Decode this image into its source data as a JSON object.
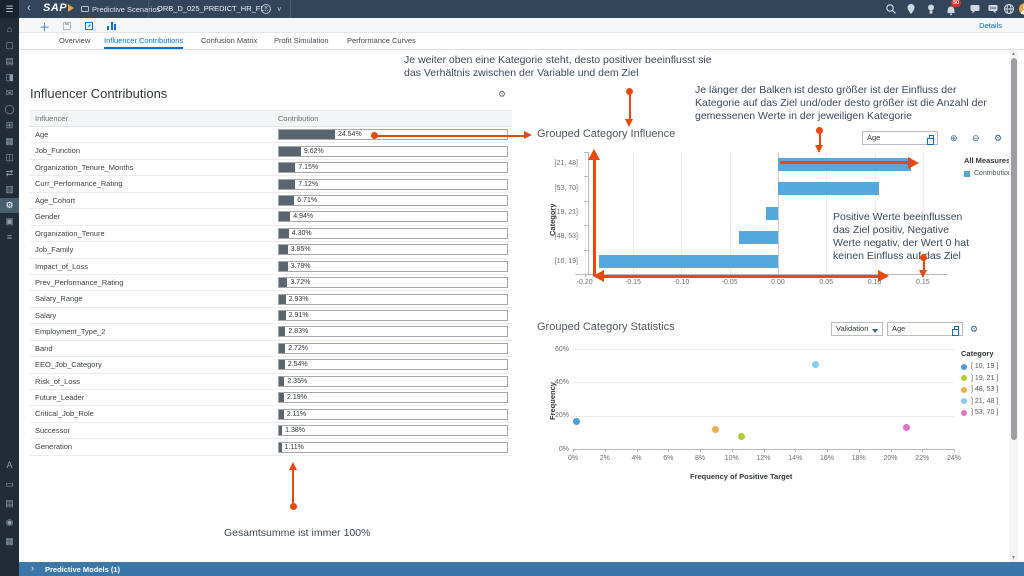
{
  "shell": {
    "logo": "SAP",
    "app_title": "Predictive Scenarios",
    "doc_tab_title": "ORB_D_025_PREDICT_HR_FL...",
    "notification_badge": "50"
  },
  "toolbar": {
    "details_label": "Details"
  },
  "tabs": {
    "items": [
      "Overview",
      "Influencer Contributions",
      "Confusion Matrix",
      "Profit Simulation",
      "Performance Curves"
    ],
    "active": "Influencer Contributions"
  },
  "table": {
    "title": "Influencer Contributions",
    "columns": {
      "influencer": "Influencer",
      "contribution": "Contribution"
    },
    "rows": [
      {
        "name": "Age",
        "pct": 24.54,
        "label": "24.54%"
      },
      {
        "name": "Job_Function",
        "pct": 9.62,
        "label": "9.62%"
      },
      {
        "name": "Organization_Tenure_Months",
        "pct": 7.15,
        "label": "7.15%"
      },
      {
        "name": "Curr_Performance_Rating",
        "pct": 7.12,
        "label": "7.12%"
      },
      {
        "name": "Age_Cohort",
        "pct": 6.71,
        "label": "6.71%"
      },
      {
        "name": "Gender",
        "pct": 4.94,
        "label": "4.94%"
      },
      {
        "name": "Organization_Tenure",
        "pct": 4.3,
        "label": "4.30%"
      },
      {
        "name": "Job_Family",
        "pct": 3.85,
        "label": "3.85%"
      },
      {
        "name": "Impact_of_Loss",
        "pct": 3.78,
        "label": "3.78%"
      },
      {
        "name": "Prev_Performance_Rating",
        "pct": 3.72,
        "label": "3.72%"
      },
      {
        "name": "Salary_Range",
        "pct": 2.93,
        "label": "2.93%"
      },
      {
        "name": "Salary",
        "pct": 2.91,
        "label": "2.91%"
      },
      {
        "name": "Employment_Type_2",
        "pct": 2.83,
        "label": "2.83%"
      },
      {
        "name": "Band",
        "pct": 2.72,
        "label": "2.72%"
      },
      {
        "name": "EEO_Job_Category",
        "pct": 2.54,
        "label": "2.54%"
      },
      {
        "name": "Risk_of_Loss",
        "pct": 2.35,
        "label": "2.35%"
      },
      {
        "name": "Future_Leader",
        "pct": 2.19,
        "label": "2.19%"
      },
      {
        "name": "Critical_Job_Role",
        "pct": 2.11,
        "label": "2.11%"
      },
      {
        "name": "Successor",
        "pct": 1.38,
        "label": "1.38%"
      },
      {
        "name": "Generation",
        "pct": 1.11,
        "label": "1.11%"
      }
    ]
  },
  "annotations": {
    "top": "Je weiter oben eine Kategorie steht, desto positiver beeinflusst sie das Verhältnis zwischen der Variable und dem Ziel",
    "right": "Je länger der Balken ist desto größer ist der Einfluss der Kategorie auf das Ziel und/oder desto größer ist die Anzahl der gemessenen  Werte  in der jeweiligen Kategorie",
    "in_chart": "Positive Werte beeinflussen das Ziel positiv, Negative Werte negativ, der Wert 0 hat keinen Einfluss auf das Ziel",
    "bottom": "Gesamtsumme  ist immer 100%"
  },
  "chart_data": [
    {
      "type": "bar",
      "orientation": "horizontal",
      "title": "Grouped Category Influence",
      "ylabel": "Category",
      "categories": [
        "]21, 48]",
        "]53, 70]",
        "]19, 21]",
        "]48, 53]",
        "[10, 19]"
      ],
      "values": [
        0.138,
        0.105,
        -0.012,
        -0.04,
        -0.185
      ],
      "x_ticks": [
        -0.2,
        -0.15,
        -0.1,
        -0.05,
        0.0,
        0.05,
        0.1,
        0.15
      ],
      "x_tick_labels": [
        "-0.20",
        "-0.15",
        "-0.10",
        "-0.05",
        "0.00",
        "0.05",
        "0.10",
        "0.15"
      ],
      "xlim": [
        -0.21,
        0.175
      ],
      "bar_color": "#55a8dd",
      "grid": true,
      "legend": {
        "title": "All Measures",
        "position": "right",
        "entries": [
          {
            "label": "Contribution",
            "color": "#55a8dd"
          }
        ]
      },
      "controls": {
        "filter_value": "Age"
      }
    },
    {
      "type": "scatter",
      "title": "Grouped Category Statistics",
      "xlabel": "Frequency of Positive Target",
      "ylabel": "Frequency",
      "x_ticks_pct": [
        0,
        2,
        4,
        6,
        8,
        10,
        12,
        14,
        16,
        18,
        20,
        22,
        24
      ],
      "y_ticks_pct": [
        0,
        20,
        40,
        60
      ],
      "xlim_pct": [
        0,
        24
      ],
      "ylim_pct": [
        0,
        60
      ],
      "grid": true,
      "points": [
        {
          "category": "[ 10, 19 ]",
          "x": 0.2,
          "y": 16.5,
          "color": "#4a9cd6"
        },
        {
          "category": "] 19, 21 ]",
          "x": 10.6,
          "y": 7.5,
          "color": "#b3c934"
        },
        {
          "category": "] 48, 53 ]",
          "x": 9.0,
          "y": 12.0,
          "color": "#f0ac49"
        },
        {
          "category": "] 21, 48 ]",
          "x": 15.3,
          "y": 50.5,
          "color": "#82cdf2"
        },
        {
          "category": "] 53, 70 ]",
          "x": 21.0,
          "y": 13.0,
          "color": "#dd74c4"
        }
      ],
      "legend": {
        "title": "Category",
        "position": "right",
        "entries": [
          {
            "label": "[ 10, 19 ]",
            "color": "#4a9cd6"
          },
          {
            "label": "] 19, 21 ]",
            "color": "#b3c934"
          },
          {
            "label": "] 48, 53 ]",
            "color": "#f0ac49"
          },
          {
            "label": "] 21, 48 ]",
            "color": "#82cdf2"
          },
          {
            "label": "] 53, 70 ]",
            "color": "#dd74c4"
          }
        ]
      },
      "controls": {
        "dataset": "Validation",
        "filter_value": "Age"
      }
    }
  ],
  "footer": {
    "label": "Predictive Models (1)"
  },
  "icons": {
    "back": "‹",
    "chevron_down": "∨",
    "close": "×",
    "gear": "⚙",
    "zoom_in": "⊕",
    "zoom_out": "⊖",
    "plus": "＋",
    "footer_chevron": "›",
    "scroll_up": "▲",
    "scroll_down": "▼",
    "hamburger": "☰",
    "sidebar_top": [
      "⌂",
      "▢",
      "▤",
      "◨",
      "✉",
      "◯",
      "⊞",
      "▦",
      "◫",
      "⇄",
      "▥",
      "⚙",
      "▣",
      "≡"
    ],
    "sidebar_top_selected_index": 11,
    "sidebar_bottom": [
      "A",
      "▭",
      "▤",
      "◉",
      "▦"
    ]
  }
}
